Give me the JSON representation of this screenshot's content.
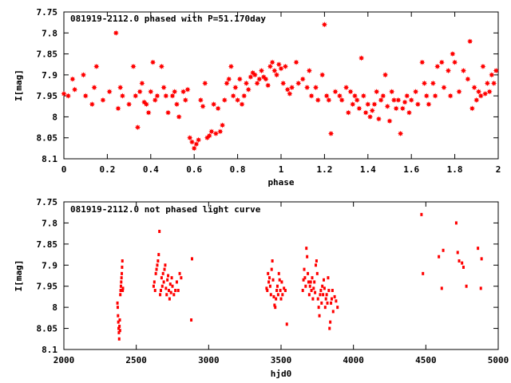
{
  "chart_data": [
    {
      "type": "scatter",
      "title": "081919-2112.0 phased with P=51.170day",
      "xlabel": "phase",
      "ylabel": "I[mag]",
      "xlim": [
        0,
        2
      ],
      "ylim": [
        7.75,
        8.1
      ],
      "y_reversed": true,
      "x_ticks": [
        "0",
        "0.2",
        "0.4",
        "0.6",
        "0.8",
        "1",
        "1.2",
        "1.4",
        "1.6",
        "1.8",
        "2"
      ],
      "x_tick_values": [
        0,
        0.2,
        0.4,
        0.6,
        0.8,
        1.0,
        1.2,
        1.4,
        1.6,
        1.8,
        2.0
      ],
      "y_ticks": [
        "7.75",
        "7.8",
        "7.85",
        "7.9",
        "7.95",
        "8",
        "8.05",
        "8.1"
      ],
      "y_tick_values": [
        7.75,
        7.8,
        7.85,
        7.9,
        7.95,
        8.0,
        8.05,
        8.1
      ],
      "marker": "star",
      "color": "#ff0000",
      "points": [
        [
          0.0,
          7.945
        ],
        [
          0.02,
          7.95
        ],
        [
          0.04,
          7.91
        ],
        [
          0.05,
          7.935
        ],
        [
          0.09,
          7.9
        ],
        [
          0.1,
          7.95
        ],
        [
          0.13,
          7.97
        ],
        [
          0.14,
          7.93
        ],
        [
          0.15,
          7.88
        ],
        [
          0.18,
          7.96
        ],
        [
          0.21,
          7.94
        ],
        [
          0.24,
          7.8
        ],
        [
          0.25,
          7.98
        ],
        [
          0.26,
          7.93
        ],
        [
          0.27,
          7.95
        ],
        [
          0.3,
          7.97
        ],
        [
          0.32,
          7.88
        ],
        [
          0.33,
          7.95
        ],
        [
          0.34,
          8.025
        ],
        [
          0.35,
          7.94
        ],
        [
          0.36,
          7.92
        ],
        [
          0.37,
          7.965
        ],
        [
          0.38,
          7.97
        ],
        [
          0.39,
          7.99
        ],
        [
          0.4,
          7.94
        ],
        [
          0.41,
          7.87
        ],
        [
          0.42,
          7.96
        ],
        [
          0.43,
          7.95
        ],
        [
          0.45,
          7.88
        ],
        [
          0.46,
          7.93
        ],
        [
          0.47,
          7.95
        ],
        [
          0.48,
          7.99
        ],
        [
          0.5,
          7.95
        ],
        [
          0.51,
          7.94
        ],
        [
          0.52,
          7.97
        ],
        [
          0.53,
          8.0
        ],
        [
          0.55,
          7.94
        ],
        [
          0.56,
          7.96
        ],
        [
          0.57,
          7.935
        ],
        [
          0.58,
          8.05
        ],
        [
          0.59,
          8.06
        ],
        [
          0.6,
          8.075
        ],
        [
          0.61,
          8.065
        ],
        [
          0.62,
          8.055
        ],
        [
          0.63,
          7.96
        ],
        [
          0.64,
          7.975
        ],
        [
          0.65,
          7.92
        ],
        [
          0.66,
          8.05
        ],
        [
          0.67,
          8.045
        ],
        [
          0.68,
          8.035
        ],
        [
          0.69,
          7.97
        ],
        [
          0.7,
          8.04
        ],
        [
          0.71,
          7.98
        ],
        [
          0.72,
          8.035
        ],
        [
          0.73,
          8.02
        ],
        [
          0.74,
          7.96
        ],
        [
          0.75,
          7.92
        ],
        [
          0.76,
          7.91
        ],
        [
          0.77,
          7.88
        ],
        [
          0.78,
          7.95
        ],
        [
          0.79,
          7.93
        ],
        [
          0.8,
          7.96
        ],
        [
          0.81,
          7.91
        ],
        [
          0.82,
          7.97
        ],
        [
          0.83,
          7.95
        ],
        [
          0.84,
          7.92
        ],
        [
          0.85,
          7.935
        ],
        [
          0.86,
          7.905
        ],
        [
          0.87,
          7.895
        ],
        [
          0.88,
          7.9
        ],
        [
          0.89,
          7.92
        ],
        [
          0.9,
          7.91
        ],
        [
          0.91,
          7.89
        ],
        [
          0.92,
          7.905
        ],
        [
          0.93,
          7.91
        ],
        [
          0.94,
          7.925
        ],
        [
          0.95,
          7.88
        ],
        [
          0.96,
          7.87
        ],
        [
          0.97,
          7.89
        ],
        [
          0.98,
          7.9
        ],
        [
          0.99,
          7.875
        ],
        [
          1.0,
          7.885
        ],
        [
          1.01,
          7.92
        ],
        [
          1.02,
          7.88
        ],
        [
          1.03,
          7.935
        ],
        [
          1.04,
          7.945
        ],
        [
          1.05,
          7.93
        ],
        [
          1.07,
          7.87
        ],
        [
          1.08,
          7.92
        ],
        [
          1.1,
          7.91
        ],
        [
          1.12,
          7.93
        ],
        [
          1.13,
          7.89
        ],
        [
          1.14,
          7.95
        ],
        [
          1.16,
          7.93
        ],
        [
          1.17,
          7.96
        ],
        [
          1.19,
          7.9
        ],
        [
          1.2,
          7.78
        ],
        [
          1.21,
          7.95
        ],
        [
          1.22,
          7.96
        ],
        [
          1.23,
          8.04
        ],
        [
          1.25,
          7.94
        ],
        [
          1.27,
          7.95
        ],
        [
          1.28,
          7.96
        ],
        [
          1.3,
          7.93
        ],
        [
          1.31,
          7.99
        ],
        [
          1.32,
          7.94
        ],
        [
          1.33,
          7.97
        ],
        [
          1.34,
          7.95
        ],
        [
          1.35,
          7.96
        ],
        [
          1.36,
          7.98
        ],
        [
          1.37,
          7.86
        ],
        [
          1.38,
          7.95
        ],
        [
          1.39,
          7.99
        ],
        [
          1.4,
          7.97
        ],
        [
          1.41,
          8.0
        ],
        [
          1.42,
          7.985
        ],
        [
          1.43,
          7.97
        ],
        [
          1.44,
          7.94
        ],
        [
          1.45,
          8.005
        ],
        [
          1.46,
          7.96
        ],
        [
          1.47,
          7.95
        ],
        [
          1.48,
          7.9
        ],
        [
          1.49,
          7.975
        ],
        [
          1.5,
          8.01
        ],
        [
          1.51,
          7.94
        ],
        [
          1.52,
          7.96
        ],
        [
          1.53,
          7.98
        ],
        [
          1.54,
          7.96
        ],
        [
          1.55,
          8.04
        ],
        [
          1.56,
          7.98
        ],
        [
          1.57,
          7.965
        ],
        [
          1.58,
          7.95
        ],
        [
          1.59,
          7.99
        ],
        [
          1.6,
          7.96
        ],
        [
          1.62,
          7.94
        ],
        [
          1.63,
          7.97
        ],
        [
          1.65,
          7.87
        ],
        [
          1.66,
          7.92
        ],
        [
          1.67,
          7.95
        ],
        [
          1.68,
          7.97
        ],
        [
          1.7,
          7.92
        ],
        [
          1.71,
          7.95
        ],
        [
          1.72,
          7.88
        ],
        [
          1.74,
          7.87
        ],
        [
          1.75,
          7.93
        ],
        [
          1.77,
          7.89
        ],
        [
          1.78,
          7.95
        ],
        [
          1.79,
          7.85
        ],
        [
          1.8,
          7.87
        ],
        [
          1.82,
          7.94
        ],
        [
          1.84,
          7.89
        ],
        [
          1.86,
          7.91
        ],
        [
          1.87,
          7.82
        ],
        [
          1.88,
          7.98
        ],
        [
          1.89,
          7.93
        ],
        [
          1.9,
          7.96
        ],
        [
          1.91,
          7.94
        ],
        [
          1.92,
          7.95
        ],
        [
          1.93,
          7.88
        ],
        [
          1.94,
          7.945
        ],
        [
          1.95,
          7.92
        ],
        [
          1.96,
          7.94
        ],
        [
          1.97,
          7.9
        ],
        [
          1.98,
          7.92
        ],
        [
          1.99,
          7.89
        ]
      ]
    },
    {
      "type": "scatter",
      "title": "081919-2112.0 not phased light curve",
      "xlabel": "hjd0",
      "ylabel": "I[mag]",
      "xlim": [
        2000,
        5000
      ],
      "ylim": [
        7.75,
        8.1
      ],
      "y_reversed": true,
      "x_ticks": [
        "2000",
        "2500",
        "3000",
        "3500",
        "4000",
        "4500",
        "5000"
      ],
      "x_tick_values": [
        2000,
        2500,
        3000,
        3500,
        4000,
        4500,
        5000
      ],
      "y_ticks": [
        "7.75",
        "7.8",
        "7.85",
        "7.9",
        "7.95",
        "8",
        "8.05",
        "8.1"
      ],
      "y_tick_values": [
        7.75,
        7.8,
        7.85,
        7.9,
        7.95,
        8.0,
        8.05,
        8.1
      ],
      "marker": "dot",
      "color": "#ff0000",
      "points": [
        [
          2370,
          7.99
        ],
        [
          2372,
          8.0
        ],
        [
          2374,
          8.02
        ],
        [
          2376,
          8.035
        ],
        [
          2378,
          8.05
        ],
        [
          2380,
          8.06
        ],
        [
          2382,
          8.075
        ],
        [
          2384,
          8.045
        ],
        [
          2386,
          8.03
        ],
        [
          2388,
          8.055
        ],
        [
          2390,
          7.97
        ],
        [
          2392,
          7.96
        ],
        [
          2394,
          7.95
        ],
        [
          2396,
          7.94
        ],
        [
          2398,
          7.93
        ],
        [
          2400,
          7.92
        ],
        [
          2402,
          7.905
        ],
        [
          2404,
          7.89
        ],
        [
          2406,
          7.96
        ],
        [
          2408,
          7.955
        ],
        [
          2620,
          7.95
        ],
        [
          2625,
          7.94
        ],
        [
          2630,
          7.96
        ],
        [
          2635,
          7.92
        ],
        [
          2640,
          7.91
        ],
        [
          2645,
          7.9
        ],
        [
          2650,
          7.89
        ],
        [
          2655,
          7.875
        ],
        [
          2660,
          7.82
        ],
        [
          2665,
          7.97
        ],
        [
          2670,
          7.96
        ],
        [
          2675,
          7.93
        ],
        [
          2680,
          7.95
        ],
        [
          2685,
          7.92
        ],
        [
          2690,
          7.94
        ],
        [
          2695,
          7.91
        ],
        [
          2700,
          7.9
        ],
        [
          2705,
          7.955
        ],
        [
          2710,
          7.97
        ],
        [
          2715,
          7.935
        ],
        [
          2720,
          7.925
        ],
        [
          2725,
          7.96
        ],
        [
          2730,
          7.98
        ],
        [
          2735,
          7.945
        ],
        [
          2740,
          7.965
        ],
        [
          2745,
          7.93
        ],
        [
          2750,
          7.95
        ],
        [
          2760,
          7.97
        ],
        [
          2770,
          7.96
        ],
        [
          2780,
          7.94
        ],
        [
          2790,
          7.96
        ],
        [
          2800,
          7.92
        ],
        [
          2810,
          7.93
        ],
        [
          2880,
          8.03
        ],
        [
          2885,
          7.885
        ],
        [
          3400,
          7.955
        ],
        [
          3405,
          7.96
        ],
        [
          3410,
          7.92
        ],
        [
          3415,
          7.94
        ],
        [
          3420,
          7.93
        ],
        [
          3425,
          7.95
        ],
        [
          3430,
          7.97
        ],
        [
          3435,
          7.91
        ],
        [
          3440,
          7.89
        ],
        [
          3445,
          7.935
        ],
        [
          3450,
          7.975
        ],
        [
          3455,
          7.995
        ],
        [
          3460,
          8.0
        ],
        [
          3465,
          7.98
        ],
        [
          3470,
          7.96
        ],
        [
          3475,
          7.95
        ],
        [
          3480,
          7.97
        ],
        [
          3485,
          7.92
        ],
        [
          3490,
          7.935
        ],
        [
          3495,
          7.96
        ],
        [
          3500,
          7.98
        ],
        [
          3505,
          7.94
        ],
        [
          3510,
          7.97
        ],
        [
          3520,
          7.955
        ],
        [
          3530,
          7.96
        ],
        [
          3540,
          8.04
        ],
        [
          3650,
          7.96
        ],
        [
          3655,
          7.935
        ],
        [
          3660,
          7.91
        ],
        [
          3665,
          7.93
        ],
        [
          3670,
          7.95
        ],
        [
          3675,
          7.86
        ],
        [
          3680,
          7.88
        ],
        [
          3685,
          7.92
        ],
        [
          3690,
          7.94
        ],
        [
          3695,
          7.97
        ],
        [
          3700,
          7.95
        ],
        [
          3705,
          7.94
        ],
        [
          3710,
          7.96
        ],
        [
          3715,
          7.93
        ],
        [
          3720,
          7.98
        ],
        [
          3725,
          7.955
        ],
        [
          3730,
          7.94
        ],
        [
          3735,
          7.965
        ],
        [
          3740,
          7.9
        ],
        [
          3745,
          7.89
        ],
        [
          3750,
          7.92
        ],
        [
          3755,
          7.98
        ],
        [
          3760,
          8.0
        ],
        [
          3765,
          8.02
        ],
        [
          3770,
          7.97
        ],
        [
          3775,
          7.96
        ],
        [
          3780,
          7.99
        ],
        [
          3785,
          7.95
        ],
        [
          3790,
          7.97
        ],
        [
          3795,
          7.935
        ],
        [
          3800,
          7.955
        ],
        [
          3805,
          8.0
        ],
        [
          3810,
          7.98
        ],
        [
          3815,
          7.97
        ],
        [
          3820,
          7.99
        ],
        [
          3825,
          7.93
        ],
        [
          3830,
          7.96
        ],
        [
          3835,
          8.05
        ],
        [
          3840,
          8.035
        ],
        [
          3845,
          7.99
        ],
        [
          3850,
          7.98
        ],
        [
          3855,
          7.96
        ],
        [
          3860,
          8.01
        ],
        [
          3870,
          7.975
        ],
        [
          3880,
          7.985
        ],
        [
          3890,
          8.0
        ],
        [
          4470,
          7.78
        ],
        [
          4480,
          7.92
        ],
        [
          4590,
          7.88
        ],
        [
          4610,
          7.955
        ],
        [
          4620,
          7.865
        ],
        [
          4710,
          7.8
        ],
        [
          4720,
          7.87
        ],
        [
          4730,
          7.89
        ],
        [
          4750,
          7.895
        ],
        [
          4760,
          7.905
        ],
        [
          4780,
          7.95
        ],
        [
          4860,
          7.86
        ],
        [
          4880,
          7.955
        ],
        [
          4885,
          7.885
        ]
      ]
    }
  ]
}
